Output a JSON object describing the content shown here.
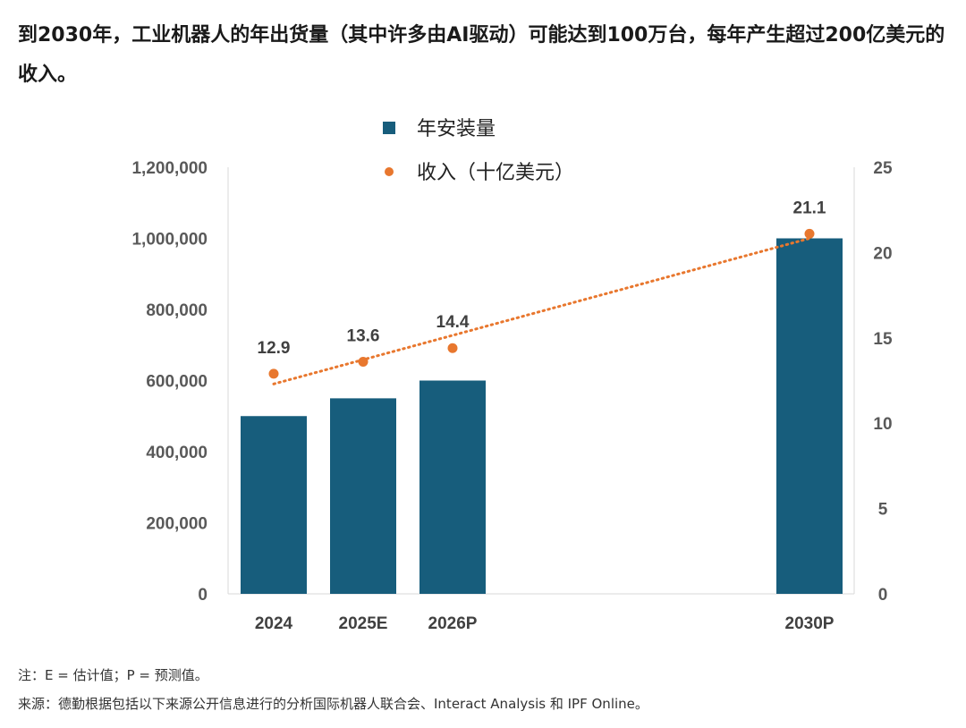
{
  "title": "到2030年，工业机器人的年出货量（其中许多由AI驱动）可能达到100万台，每年产生超过200亿美元的收入。",
  "colors": {
    "bar": "#175d7c",
    "line": "#e8772e",
    "axis": "#d9d9d9"
  },
  "chart_data": {
    "type": "bar",
    "categories": [
      "2024",
      "2025E",
      "2026P",
      "2030P"
    ],
    "series": [
      {
        "name": "年安装量",
        "type": "bar",
        "axis": "left",
        "values": [
          500000,
          550000,
          600000,
          1000000
        ]
      },
      {
        "name": "收入（十亿美元）",
        "type": "line",
        "axis": "right",
        "style": "dotted",
        "values": [
          12.9,
          13.6,
          14.4,
          21.1
        ],
        "data_labels": [
          "12.9",
          "13.6",
          "14.4",
          "21.1"
        ]
      }
    ],
    "y_left": {
      "ylim": [
        0,
        1200000
      ],
      "ticks": [
        "0",
        "200,000",
        "400,000",
        "600,000",
        "800,000",
        "1,000,000",
        "1,200,000"
      ]
    },
    "y_right": {
      "ylim": [
        0,
        25
      ],
      "ticks": [
        "0",
        "5",
        "10",
        "15",
        "20",
        "25"
      ]
    },
    "grid": false,
    "legend": "top-center"
  },
  "footnotes": {
    "note": "注：E = 估计值；P = 预测值。",
    "source": "来源：德勤根据包括以下来源公开信息进行的分析国际机器人联合会、Interact Analysis 和 IPF Online。"
  }
}
